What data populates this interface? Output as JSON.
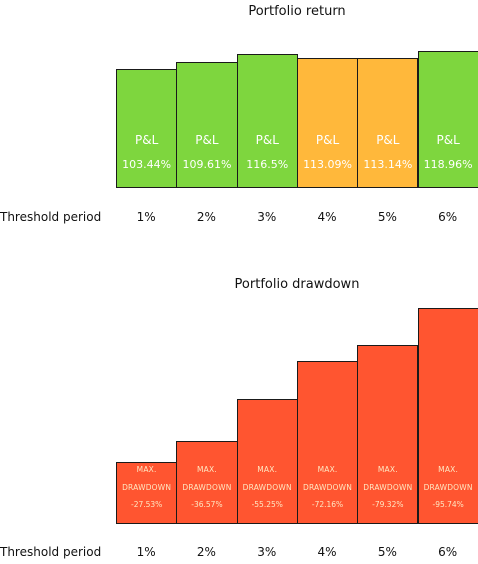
{
  "chart_data": [
    {
      "type": "bar",
      "title": "Portfolio return",
      "xlabel": "Threshold period",
      "categories": [
        "1%",
        "2%",
        "3%",
        "4%",
        "5%",
        "6%"
      ],
      "bar_tag": "P&L",
      "values": [
        103.44,
        109.61,
        116.5,
        113.09,
        113.14,
        118.96
      ],
      "value_labels": [
        "103.44%",
        "109.61%",
        "116.5%",
        "113.09%",
        "113.14%",
        "118.96%"
      ],
      "colors": [
        "#7ed63e",
        "#7ed63e",
        "#7ed63e",
        "#ffb83b",
        "#ffb83b",
        "#7ed63e"
      ],
      "ylim": [
        0,
        123
      ]
    },
    {
      "type": "bar",
      "title": "Portfolio drawdown",
      "xlabel": "Threshold period",
      "categories": [
        "1%",
        "2%",
        "3%",
        "4%",
        "5%",
        "6%"
      ],
      "bar_tag_line1": "MAX.",
      "bar_tag_line2": "DRAWDOWN",
      "values": [
        -27.53,
        -36.57,
        -55.25,
        -72.16,
        -79.32,
        -95.74
      ],
      "value_labels": [
        "-27.53%",
        "-36.57%",
        "-55.25%",
        "-72.16%",
        "-79.32%",
        "-95.74%"
      ],
      "colors": [
        "#ff5530",
        "#ff5530",
        "#ff5530",
        "#ff5530",
        "#ff5530",
        "#ff5530"
      ]
    }
  ]
}
